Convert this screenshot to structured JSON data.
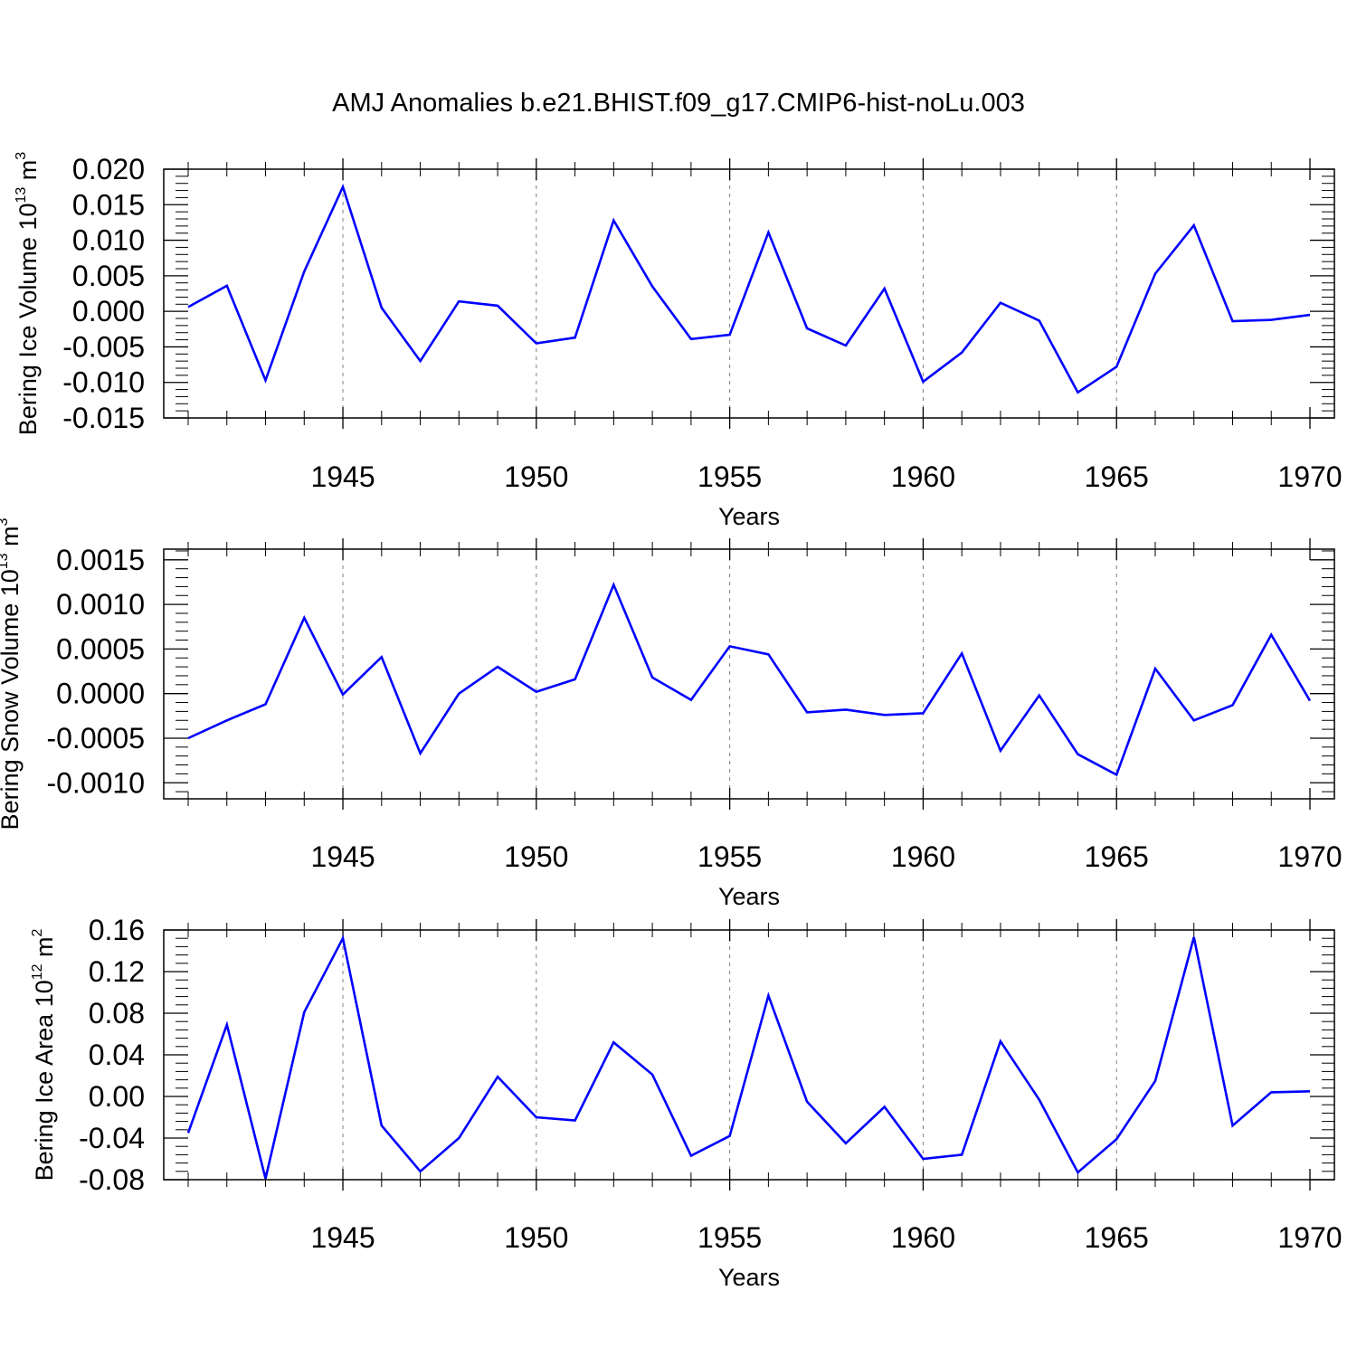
{
  "title": "AMJ Anomalies b.e21.BHIST.f09_g17.CMIP6-hist-noLu.003",
  "colors": {
    "line": "#0000ff",
    "axis": "#000000",
    "grid": "#808080"
  },
  "chart_data": [
    {
      "type": "line",
      "ylabel": {
        "main": "Bering Ice Volume 10",
        "exponent": "13",
        "unit": " m",
        "unit_exponent": "3"
      },
      "xlabel": "Years",
      "xlim": [
        1941,
        1970
      ],
      "ylim": [
        -0.015,
        0.02
      ],
      "x_ticks": [
        "1945",
        "1950",
        "1955",
        "1960",
        "1965",
        "1970"
      ],
      "y_ticks": [
        "0.020",
        "0.015",
        "0.010",
        "0.005",
        "0.000",
        "-0.005",
        "-0.010",
        "-0.015"
      ],
      "x": [
        1941,
        1942,
        1943,
        1944,
        1945,
        1946,
        1947,
        1948,
        1949,
        1950,
        1951,
        1952,
        1953,
        1954,
        1955,
        1956,
        1957,
        1958,
        1959,
        1960,
        1961,
        1962,
        1963,
        1964,
        1965,
        1966,
        1967,
        1968,
        1969,
        1970
      ],
      "values": [
        0.0006,
        0.0036,
        -0.0097,
        0.0056,
        0.0175,
        0.0005,
        -0.007,
        0.0014,
        0.0008,
        -0.0045,
        -0.0037,
        0.0128,
        0.0035,
        -0.0039,
        -0.0033,
        0.0111,
        -0.0024,
        -0.0048,
        0.0032,
        -0.0099,
        -0.0058,
        0.0012,
        -0.0013,
        -0.0114,
        -0.0078,
        0.0053,
        0.0121,
        -0.0014,
        -0.0012,
        -0.0005
      ]
    },
    {
      "type": "line",
      "ylabel": {
        "main": "Bering Snow Volume 10",
        "exponent": "13",
        "unit": " m",
        "unit_exponent": "3"
      },
      "xlabel": "Years",
      "xlim": [
        1941,
        1970
      ],
      "ylim": [
        -0.00118,
        0.00162
      ],
      "x_ticks": [
        "1945",
        "1950",
        "1955",
        "1960",
        "1965",
        "1970"
      ],
      "y_ticks": [
        "0.0015",
        "0.0010",
        "0.0005",
        "0.0000",
        "-0.0005",
        "-0.0010"
      ],
      "y_tick_values": [
        0.0015,
        0.001,
        0.0005,
        0.0,
        -0.0005,
        -0.001
      ],
      "x": [
        1941,
        1942,
        1943,
        1944,
        1945,
        1946,
        1947,
        1948,
        1949,
        1950,
        1951,
        1952,
        1953,
        1954,
        1955,
        1956,
        1957,
        1958,
        1959,
        1960,
        1961,
        1962,
        1963,
        1964,
        1965,
        1966,
        1967,
        1968,
        1969,
        1970
      ],
      "values": [
        -0.0005,
        -0.0003,
        -0.00012,
        0.00085,
        -1e-05,
        0.00041,
        -0.00067,
        0.0,
        0.0003,
        2e-05,
        0.00016,
        0.00122,
        0.00018,
        -7e-05,
        0.00053,
        0.00044,
        -0.00021,
        -0.00018,
        -0.00024,
        -0.00022,
        0.00045,
        -0.00064,
        -2e-05,
        -0.00068,
        -0.00091,
        0.00028,
        -0.0003,
        -0.00013,
        0.00066,
        -8e-05
      ]
    },
    {
      "type": "line",
      "ylabel": {
        "main": "Bering Ice Area 10",
        "exponent": "12",
        "unit": " m",
        "unit_exponent": "2"
      },
      "xlabel": "Years",
      "xlim": [
        1941,
        1970
      ],
      "ylim": [
        -0.08,
        0.16
      ],
      "x_ticks": [
        "1945",
        "1950",
        "1955",
        "1960",
        "1965",
        "1970"
      ],
      "y_ticks": [
        "0.16",
        "0.12",
        "0.08",
        "0.04",
        "0.00",
        "-0.04",
        "-0.08"
      ],
      "x": [
        1941,
        1942,
        1943,
        1944,
        1945,
        1946,
        1947,
        1948,
        1949,
        1950,
        1951,
        1952,
        1953,
        1954,
        1955,
        1956,
        1957,
        1958,
        1959,
        1960,
        1961,
        1962,
        1963,
        1964,
        1965,
        1966,
        1967,
        1968,
        1969,
        1970
      ],
      "values": [
        -0.035,
        0.069,
        -0.079,
        0.081,
        0.152,
        -0.028,
        -0.072,
        -0.04,
        0.019,
        -0.02,
        -0.023,
        0.052,
        0.021,
        -0.057,
        -0.038,
        0.097,
        -0.005,
        -0.045,
        -0.01,
        -0.06,
        -0.056,
        0.053,
        -0.003,
        -0.073,
        -0.041,
        0.015,
        0.153,
        -0.028,
        0.004,
        0.005
      ]
    }
  ]
}
